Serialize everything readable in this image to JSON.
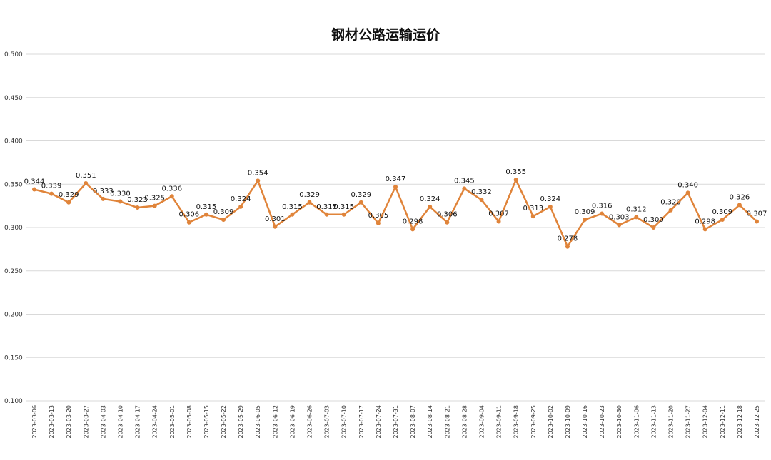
{
  "chart_data": {
    "type": "line",
    "title": "钢材公路运输运价",
    "xlabel": "",
    "ylabel": "",
    "ylim": [
      0.1,
      0.5
    ],
    "yticks": [
      "0.100",
      "0.150",
      "0.200",
      "0.250",
      "0.300",
      "0.350",
      "0.400",
      "0.450",
      "0.500"
    ],
    "grid": true,
    "legend": "none",
    "line_color": "#E0843A",
    "categories": [
      "2023-03-06",
      "2023-03-13",
      "2023-03-20",
      "2023-03-27",
      "2023-04-03",
      "2023-04-10",
      "2023-04-17",
      "2023-04-24",
      "2023-05-01",
      "2023-05-08",
      "2023-05-15",
      "2023-05-22",
      "2023-05-29",
      "2023-06-05",
      "2023-06-12",
      "2023-06-19",
      "2023-06-26",
      "2023-07-03",
      "2023-07-10",
      "2023-07-17",
      "2023-07-24",
      "2023-07-31",
      "2023-08-07",
      "2023-08-14",
      "2023-08-21",
      "2023-08-28",
      "2023-09-04",
      "2023-09-11",
      "2023-09-18",
      "2023-09-25",
      "2023-10-02",
      "2023-10-09",
      "2023-10-16",
      "2023-10-23",
      "2023-10-30",
      "2023-11-06",
      "2023-11-13",
      "2023-11-20",
      "2023-11-27",
      "2023-12-04",
      "2023-12-11",
      "2023-12-18",
      "2023-12-25"
    ],
    "series": [
      {
        "values": [
          0.344,
          0.339,
          0.329,
          0.351,
          0.333,
          0.33,
          0.323,
          0.325,
          0.336,
          0.306,
          0.315,
          0.309,
          0.324,
          0.354,
          0.301,
          0.315,
          0.329,
          0.315,
          0.315,
          0.329,
          0.305,
          0.347,
          0.298,
          0.324,
          0.306,
          0.345,
          0.332,
          0.307,
          0.355,
          0.313,
          0.324,
          0.278,
          0.309,
          0.316,
          0.303,
          0.312,
          0.3,
          0.32,
          0.34,
          0.298,
          0.309,
          0.326,
          0.307
        ],
        "labels": [
          "0.344",
          "0.339",
          "0.329",
          "0.351",
          "0.333",
          "0.330",
          "0.323",
          "0.325",
          "0.336",
          "0.306",
          "0.315",
          "0.309",
          "0.324",
          "0.354",
          "0.301",
          "0.315",
          "0.329",
          "0.315",
          "0.315",
          "0.329",
          "0.305",
          "0.347",
          "0.298",
          "0.324",
          "0.306",
          "0.345",
          "0.332",
          "0.307",
          "0.355",
          "0.313",
          "0.324",
          "0.278",
          "0.309",
          "0.316",
          "0.303",
          "0.312",
          "0.300",
          "0.320",
          "0.340",
          "0.298",
          "0.309",
          "0.326",
          "0.307"
        ]
      }
    ]
  }
}
